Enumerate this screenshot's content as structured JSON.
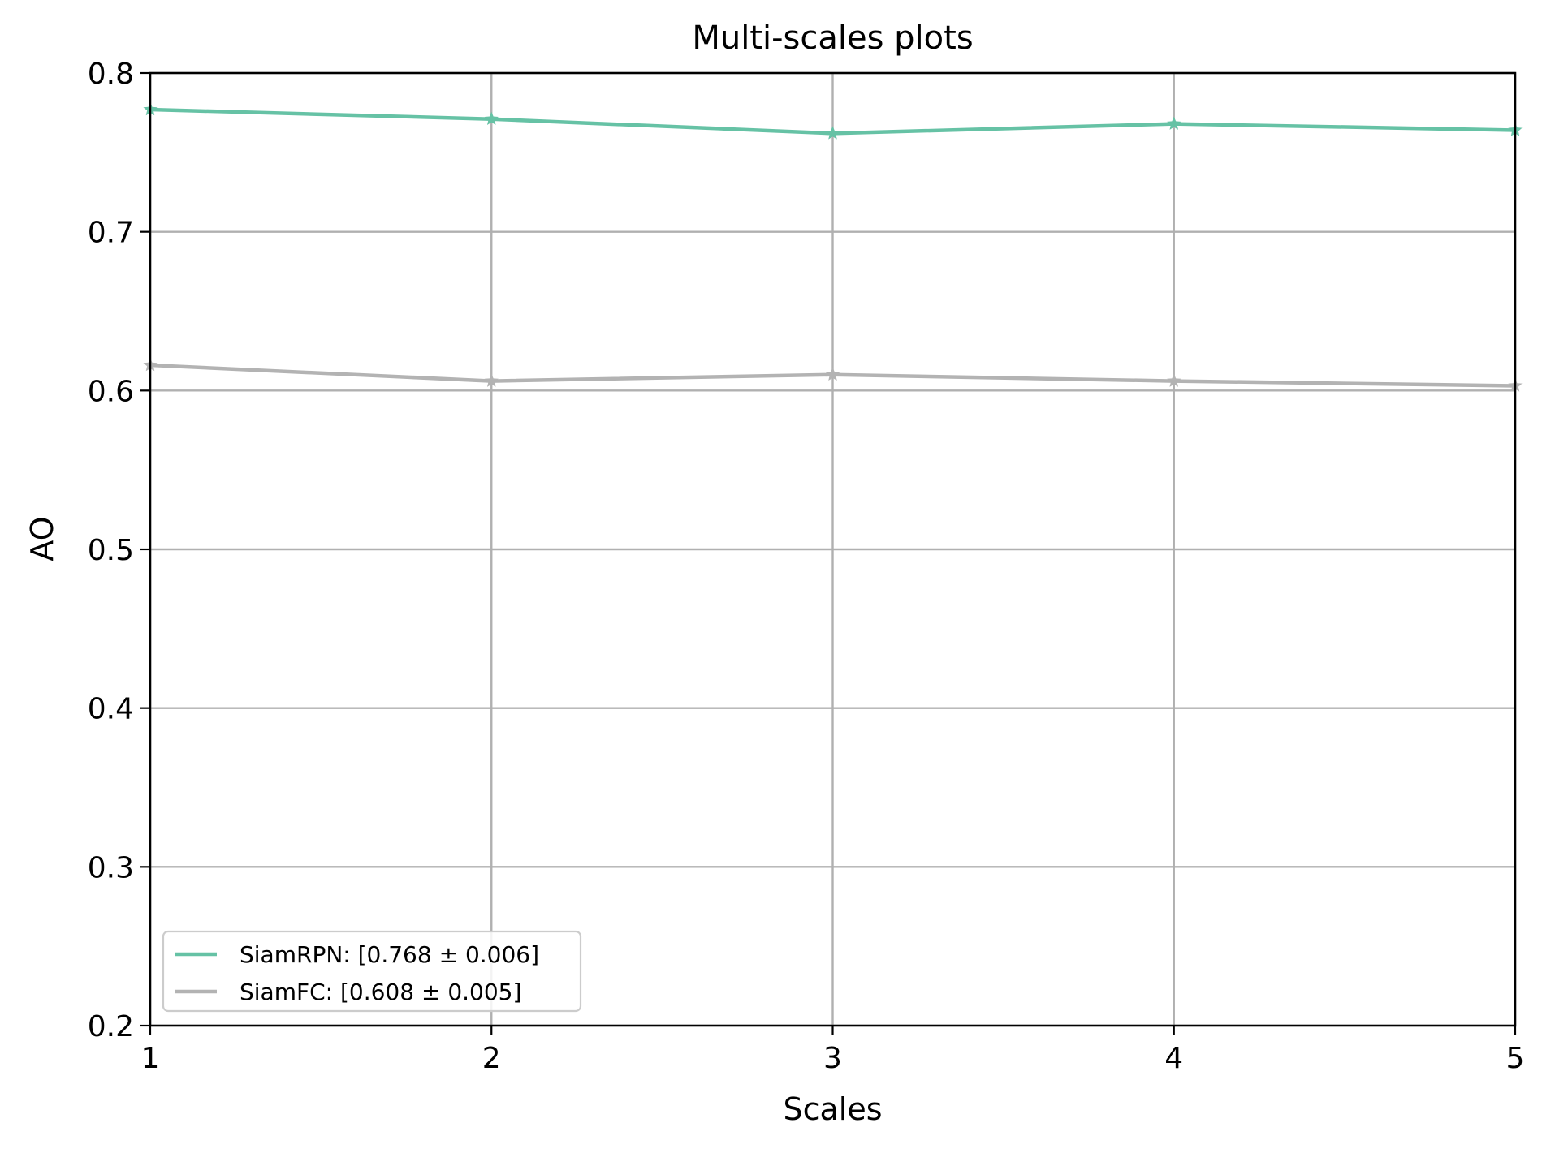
{
  "chart_data": {
    "type": "line",
    "title": "Multi-scales plots",
    "xlabel": "Scales",
    "ylabel": "AO",
    "x": [
      1,
      2,
      3,
      4,
      5
    ],
    "xlim": [
      1,
      5
    ],
    "ylim": [
      0.2,
      0.8
    ],
    "xticks": [
      "1",
      "2",
      "3",
      "4",
      "5"
    ],
    "yticks": [
      "0.2",
      "0.3",
      "0.4",
      "0.5",
      "0.6",
      "0.7",
      "0.8"
    ],
    "grid": true,
    "legend_position": "lower-left",
    "series": [
      {
        "name": "SiamRPN: [0.768 ± 0.006]",
        "values": [
          0.777,
          0.771,
          0.762,
          0.768,
          0.764
        ],
        "color": "#66c2a5",
        "marker": "star"
      },
      {
        "name": "SiamFC: [0.608 ± 0.005]",
        "values": [
          0.616,
          0.606,
          0.61,
          0.606,
          0.603
        ],
        "color": "#b3b3b3",
        "marker": "star"
      }
    ]
  }
}
